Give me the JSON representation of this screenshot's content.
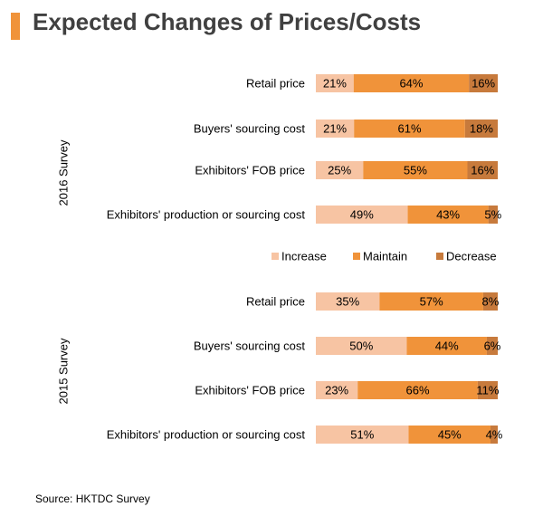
{
  "title": "Expected Changes of Prices/Costs",
  "source": "Source: HKTDC Survey",
  "colors": {
    "accent": "#f0933a",
    "title_text": "#404040"
  },
  "chart_data": {
    "type": "bar",
    "orientation": "horizontal",
    "stacked": true,
    "unit": "%",
    "title": "Expected Changes of Prices/Costs",
    "legend": {
      "placement": "center, between the two panels",
      "entries": [
        {
          "name": "Increase",
          "color": "#f7c4a3"
        },
        {
          "name": "Maintain",
          "color": "#f0933a"
        },
        {
          "name": "Decrease",
          "color": "#c77a3c"
        }
      ]
    },
    "panels": [
      {
        "group_label": "2016 Survey",
        "categories": [
          "Retail price",
          "Buyers' sourcing cost",
          "Exhibitors' FOB price",
          "Exhibitors' production or sourcing cost"
        ],
        "series": [
          {
            "name": "Increase",
            "values": [
              21,
              21,
              25,
              49
            ]
          },
          {
            "name": "Maintain",
            "values": [
              64,
              61,
              55,
              43
            ]
          },
          {
            "name": "Decrease",
            "values": [
              16,
              18,
              16,
              5
            ]
          }
        ]
      },
      {
        "group_label": "2015 Survey",
        "categories": [
          "Retail price",
          "Buyers' sourcing cost",
          "Exhibitors' FOB price",
          "Exhibitors' production or sourcing cost"
        ],
        "series": [
          {
            "name": "Increase",
            "values": [
              35,
              50,
              23,
              51
            ]
          },
          {
            "name": "Maintain",
            "values": [
              57,
              44,
              66,
              45
            ]
          },
          {
            "name": "Decrease",
            "values": [
              8,
              6,
              11,
              4
            ]
          }
        ]
      }
    ]
  }
}
